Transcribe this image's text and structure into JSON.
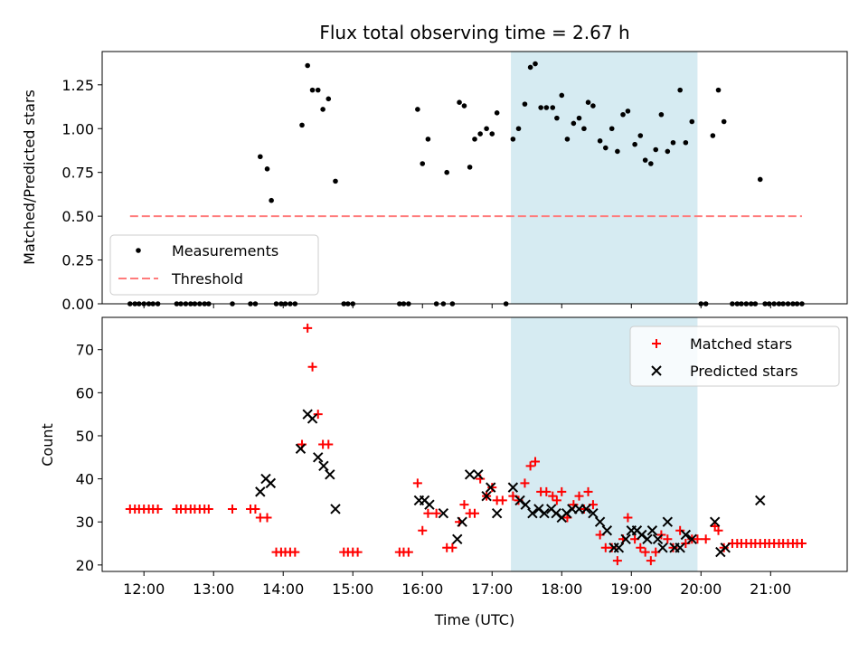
{
  "chart_data": {
    "title": "Flux total observing time = 2.67 h",
    "colors": {
      "measurements": "#000000",
      "threshold": "#ff7b7b",
      "matched": "#ff0000",
      "predicted": "#000000",
      "shade": "#add8e6"
    },
    "xlabel": "Time (UTC)",
    "x_ticks": [
      "12:00",
      "13:00",
      "14:00",
      "15:00",
      "16:00",
      "17:00",
      "18:00",
      "19:00",
      "20:00",
      "21:00"
    ],
    "x_tick_hours": [
      12,
      13,
      14,
      15,
      16,
      17,
      18,
      19,
      20,
      21
    ],
    "xlim_hours": [
      11.4,
      22.1
    ],
    "shaded_interval_hours": [
      17.27,
      19.95
    ],
    "panels": [
      {
        "type": "scatter",
        "ylabel": "Matched/Predicted stars",
        "ylim": [
          0,
          1.44
        ],
        "y_ticks": [
          "0.00",
          "0.25",
          "0.50",
          "0.75",
          "1.00",
          "1.25"
        ],
        "y_tick_values": [
          0,
          0.25,
          0.5,
          0.75,
          1.0,
          1.25
        ],
        "legend": [
          "Measurements",
          "Threshold"
        ],
        "threshold": {
          "value": 0.5,
          "x_range": [
            11.8,
            21.45
          ]
        },
        "measurements": [
          [
            11.8,
            0
          ],
          [
            11.87,
            0
          ],
          [
            11.93,
            0
          ],
          [
            12.0,
            0
          ],
          [
            12.07,
            0
          ],
          [
            12.13,
            0
          ],
          [
            12.2,
            0
          ],
          [
            12.47,
            0
          ],
          [
            12.53,
            0
          ],
          [
            12.6,
            0
          ],
          [
            12.67,
            0
          ],
          [
            12.73,
            0
          ],
          [
            12.8,
            0
          ],
          [
            12.87,
            0
          ],
          [
            12.93,
            0
          ],
          [
            13.27,
            0
          ],
          [
            13.53,
            0
          ],
          [
            13.6,
            0
          ],
          [
            13.67,
            0.84
          ],
          [
            13.77,
            0.77
          ],
          [
            13.83,
            0.59
          ],
          [
            13.9,
            0
          ],
          [
            13.97,
            0
          ],
          [
            14.03,
            0
          ],
          [
            14.1,
            0
          ],
          [
            14.17,
            0
          ],
          [
            14.27,
            1.02
          ],
          [
            14.35,
            1.36
          ],
          [
            14.42,
            1.22
          ],
          [
            14.5,
            1.22
          ],
          [
            14.57,
            1.11
          ],
          [
            14.65,
            1.17
          ],
          [
            14.75,
            0.7
          ],
          [
            14.87,
            0
          ],
          [
            14.93,
            0
          ],
          [
            15.0,
            0
          ],
          [
            15.67,
            0
          ],
          [
            15.73,
            0
          ],
          [
            15.8,
            0
          ],
          [
            15.93,
            1.11
          ],
          [
            16.0,
            0.8
          ],
          [
            16.08,
            0.94
          ],
          [
            16.2,
            0
          ],
          [
            16.3,
            0
          ],
          [
            16.35,
            0.75
          ],
          [
            16.43,
            0
          ],
          [
            16.53,
            1.15
          ],
          [
            16.6,
            1.13
          ],
          [
            16.68,
            0.78
          ],
          [
            16.75,
            0.94
          ],
          [
            16.83,
            0.97
          ],
          [
            16.92,
            1.0
          ],
          [
            17.0,
            0.97
          ],
          [
            17.07,
            1.09
          ],
          [
            17.2,
            0
          ],
          [
            17.3,
            0.94
          ],
          [
            17.38,
            1.0
          ],
          [
            17.47,
            1.14
          ],
          [
            17.55,
            1.35
          ],
          [
            17.62,
            1.37
          ],
          [
            17.7,
            1.12
          ],
          [
            17.78,
            1.12
          ],
          [
            17.87,
            1.12
          ],
          [
            17.93,
            1.06
          ],
          [
            18.0,
            1.19
          ],
          [
            18.08,
            0.94
          ],
          [
            18.17,
            1.03
          ],
          [
            18.25,
            1.06
          ],
          [
            18.32,
            1.0
          ],
          [
            18.38,
            1.15
          ],
          [
            18.45,
            1.13
          ],
          [
            18.55,
            0.93
          ],
          [
            18.63,
            0.89
          ],
          [
            18.72,
            1.0
          ],
          [
            18.8,
            0.87
          ],
          [
            18.88,
            1.08
          ],
          [
            18.95,
            1.1
          ],
          [
            19.05,
            0.91
          ],
          [
            19.13,
            0.96
          ],
          [
            19.2,
            0.82
          ],
          [
            19.28,
            0.8
          ],
          [
            19.35,
            0.88
          ],
          [
            19.43,
            1.08
          ],
          [
            19.52,
            0.87
          ],
          [
            19.6,
            0.92
          ],
          [
            19.7,
            1.22
          ],
          [
            19.78,
            0.92
          ],
          [
            19.87,
            1.04
          ],
          [
            20.0,
            0
          ],
          [
            20.07,
            0
          ],
          [
            20.17,
            0.96
          ],
          [
            20.25,
            1.22
          ],
          [
            20.33,
            1.04
          ],
          [
            20.45,
            0
          ],
          [
            20.52,
            0
          ],
          [
            20.58,
            0
          ],
          [
            20.65,
            0
          ],
          [
            20.72,
            0
          ],
          [
            20.78,
            0
          ],
          [
            20.85,
            0.71
          ],
          [
            20.92,
            0
          ],
          [
            20.98,
            0
          ],
          [
            21.05,
            0
          ],
          [
            21.12,
            0
          ],
          [
            21.18,
            0
          ],
          [
            21.25,
            0
          ],
          [
            21.32,
            0
          ],
          [
            21.38,
            0
          ],
          [
            21.45,
            0
          ]
        ]
      },
      {
        "type": "scatter",
        "ylabel": "Count",
        "ylim": [
          18.5,
          77.5
        ],
        "y_ticks": [
          "20",
          "30",
          "40",
          "50",
          "60",
          "70"
        ],
        "y_tick_values": [
          20,
          30,
          40,
          50,
          60,
          70
        ],
        "legend": [
          "Matched stars",
          "Predicted stars"
        ],
        "matched": [
          [
            11.8,
            33
          ],
          [
            11.87,
            33
          ],
          [
            11.93,
            33
          ],
          [
            12.0,
            33
          ],
          [
            12.07,
            33
          ],
          [
            12.13,
            33
          ],
          [
            12.2,
            33
          ],
          [
            12.47,
            33
          ],
          [
            12.53,
            33
          ],
          [
            12.6,
            33
          ],
          [
            12.67,
            33
          ],
          [
            12.73,
            33
          ],
          [
            12.8,
            33
          ],
          [
            12.87,
            33
          ],
          [
            12.93,
            33
          ],
          [
            13.27,
            33
          ],
          [
            13.53,
            33
          ],
          [
            13.6,
            33
          ],
          [
            13.67,
            31
          ],
          [
            13.77,
            31
          ],
          [
            13.9,
            23
          ],
          [
            13.97,
            23
          ],
          [
            14.03,
            23
          ],
          [
            14.1,
            23
          ],
          [
            14.17,
            23
          ],
          [
            14.27,
            48
          ],
          [
            14.35,
            75
          ],
          [
            14.42,
            66
          ],
          [
            14.5,
            55
          ],
          [
            14.57,
            48
          ],
          [
            14.65,
            48
          ],
          [
            14.87,
            23
          ],
          [
            14.93,
            23
          ],
          [
            15.0,
            23
          ],
          [
            15.07,
            23
          ],
          [
            15.67,
            23
          ],
          [
            15.73,
            23
          ],
          [
            15.8,
            23
          ],
          [
            15.93,
            39
          ],
          [
            16.0,
            28
          ],
          [
            16.08,
            32
          ],
          [
            16.2,
            32
          ],
          [
            16.35,
            24
          ],
          [
            16.43,
            24
          ],
          [
            16.53,
            30
          ],
          [
            16.6,
            34
          ],
          [
            16.68,
            32
          ],
          [
            16.75,
            32
          ],
          [
            16.83,
            40
          ],
          [
            16.92,
            36
          ],
          [
            17.0,
            38
          ],
          [
            17.07,
            35
          ],
          [
            17.15,
            35
          ],
          [
            17.3,
            36
          ],
          [
            17.38,
            35
          ],
          [
            17.47,
            39
          ],
          [
            17.55,
            43
          ],
          [
            17.62,
            44
          ],
          [
            17.7,
            37
          ],
          [
            17.78,
            37
          ],
          [
            17.87,
            36
          ],
          [
            17.93,
            35
          ],
          [
            18.0,
            37
          ],
          [
            18.08,
            31
          ],
          [
            18.17,
            34
          ],
          [
            18.25,
            36
          ],
          [
            18.32,
            33
          ],
          [
            18.38,
            37
          ],
          [
            18.45,
            34
          ],
          [
            18.55,
            27
          ],
          [
            18.63,
            24
          ],
          [
            18.72,
            24
          ],
          [
            18.8,
            21
          ],
          [
            18.88,
            26
          ],
          [
            18.95,
            31
          ],
          [
            19.05,
            26
          ],
          [
            19.13,
            24
          ],
          [
            19.2,
            23
          ],
          [
            19.28,
            21
          ],
          [
            19.35,
            23
          ],
          [
            19.43,
            27
          ],
          [
            19.52,
            26
          ],
          [
            19.6,
            24
          ],
          [
            19.7,
            28
          ],
          [
            19.78,
            25
          ],
          [
            19.87,
            26
          ],
          [
            19.95,
            26
          ],
          [
            20.07,
            26
          ],
          [
            20.2,
            29
          ],
          [
            20.25,
            28
          ],
          [
            20.33,
            24
          ],
          [
            20.45,
            25
          ],
          [
            20.52,
            25
          ],
          [
            20.58,
            25
          ],
          [
            20.65,
            25
          ],
          [
            20.72,
            25
          ],
          [
            20.78,
            25
          ],
          [
            20.85,
            25
          ],
          [
            20.92,
            25
          ],
          [
            20.98,
            25
          ],
          [
            21.05,
            25
          ],
          [
            21.12,
            25
          ],
          [
            21.18,
            25
          ],
          [
            21.25,
            25
          ],
          [
            21.32,
            25
          ],
          [
            21.38,
            25
          ],
          [
            21.45,
            25
          ]
        ],
        "predicted": [
          [
            13.67,
            37
          ],
          [
            13.75,
            40
          ],
          [
            13.82,
            39
          ],
          [
            14.25,
            47
          ],
          [
            14.35,
            55
          ],
          [
            14.42,
            54
          ],
          [
            14.5,
            45
          ],
          [
            14.58,
            43
          ],
          [
            14.67,
            41
          ],
          [
            14.75,
            33
          ],
          [
            15.95,
            35
          ],
          [
            16.03,
            35
          ],
          [
            16.1,
            34
          ],
          [
            16.3,
            32
          ],
          [
            16.5,
            26
          ],
          [
            16.57,
            30
          ],
          [
            16.68,
            41
          ],
          [
            16.8,
            41
          ],
          [
            16.92,
            36
          ],
          [
            16.98,
            38
          ],
          [
            17.07,
            32
          ],
          [
            17.3,
            38
          ],
          [
            17.4,
            35
          ],
          [
            17.48,
            34
          ],
          [
            17.58,
            32
          ],
          [
            17.67,
            33
          ],
          [
            17.75,
            32
          ],
          [
            17.85,
            33
          ],
          [
            17.92,
            32
          ],
          [
            18.0,
            31
          ],
          [
            18.07,
            32
          ],
          [
            18.15,
            33
          ],
          [
            18.25,
            33
          ],
          [
            18.35,
            33
          ],
          [
            18.45,
            32
          ],
          [
            18.55,
            30
          ],
          [
            18.65,
            28
          ],
          [
            18.75,
            24
          ],
          [
            18.82,
            24
          ],
          [
            18.92,
            26
          ],
          [
            19.0,
            28
          ],
          [
            19.08,
            28
          ],
          [
            19.15,
            27
          ],
          [
            19.23,
            26
          ],
          [
            19.3,
            28
          ],
          [
            19.38,
            26
          ],
          [
            19.45,
            24
          ],
          [
            19.52,
            30
          ],
          [
            19.62,
            24
          ],
          [
            19.7,
            24
          ],
          [
            19.78,
            27
          ],
          [
            19.87,
            26
          ],
          [
            20.2,
            30
          ],
          [
            20.28,
            23
          ],
          [
            20.35,
            24
          ],
          [
            20.85,
            35
          ]
        ]
      }
    ]
  }
}
